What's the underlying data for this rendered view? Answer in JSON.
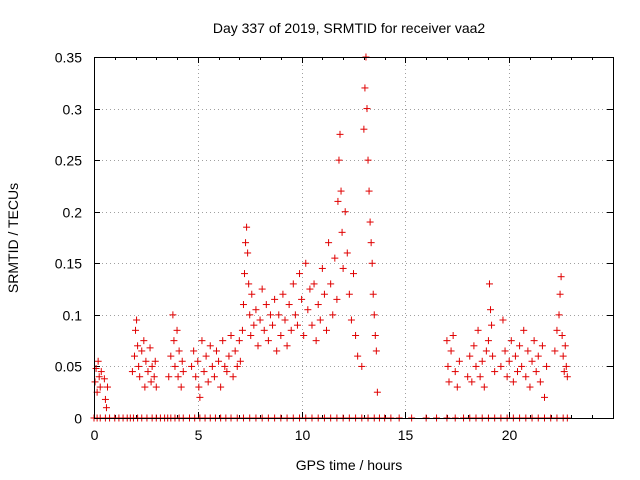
{
  "chart_data": {
    "type": "scatter",
    "title": "Day 337 of 2019, SRMTID for receiver vaa2",
    "xlabel": "GPS time / hours",
    "ylabel": "SRMTID / TECUs",
    "xlim": [
      0,
      25
    ],
    "ylim": [
      0,
      0.35
    ],
    "xticks": [
      0,
      5,
      10,
      15,
      20
    ],
    "xtick_labels": [
      "0",
      "5",
      "10",
      "15",
      "20"
    ],
    "yticks": [
      0,
      0.05,
      0.1,
      0.15,
      0.2,
      0.25,
      0.3,
      0.35
    ],
    "ytick_labels": [
      "0",
      "0.05",
      "0.1",
      "0.15",
      "0.2",
      "0.25",
      "0.3",
      "0.35"
    ],
    "grid": true,
    "marker": "+",
    "color": "#e00000",
    "series": [
      {
        "name": "SRMTID",
        "points": [
          [
            0.05,
            0.035
          ],
          [
            0.1,
            0.048
          ],
          [
            0.15,
            0.025
          ],
          [
            0.2,
            0.055
          ],
          [
            0.25,
            0.04
          ],
          [
            0.3,
            0.03
          ],
          [
            0.35,
            0.045
          ],
          [
            0.5,
            0.038
          ],
          [
            0.55,
            0.018
          ],
          [
            0.6,
            0.01
          ],
          [
            0.65,
            0.03
          ],
          [
            1.85,
            0.045
          ],
          [
            1.95,
            0.06
          ],
          [
            2.0,
            0.085
          ],
          [
            2.05,
            0.095
          ],
          [
            2.1,
            0.07
          ],
          [
            2.15,
            0.05
          ],
          [
            2.2,
            0.04
          ],
          [
            2.3,
            0.065
          ],
          [
            2.4,
            0.075
          ],
          [
            2.45,
            0.03
          ],
          [
            2.5,
            0.055
          ],
          [
            2.6,
            0.045
          ],
          [
            2.7,
            0.068
          ],
          [
            2.75,
            0.035
          ],
          [
            2.8,
            0.05
          ],
          [
            2.9,
            0.04
          ],
          [
            2.95,
            0.055
          ],
          [
            3.0,
            0.03
          ],
          [
            3.6,
            0.04
          ],
          [
            3.7,
            0.06
          ],
          [
            3.8,
            0.1
          ],
          [
            3.85,
            0.075
          ],
          [
            3.9,
            0.05
          ],
          [
            4.0,
            0.085
          ],
          [
            4.05,
            0.04
          ],
          [
            4.1,
            0.065
          ],
          [
            4.2,
            0.03
          ],
          [
            4.25,
            0.055
          ],
          [
            4.3,
            0.045
          ],
          [
            4.7,
            0.05
          ],
          [
            4.8,
            0.065
          ],
          [
            4.9,
            0.04
          ],
          [
            5.0,
            0.055
          ],
          [
            5.05,
            0.03
          ],
          [
            5.1,
            0.02
          ],
          [
            5.2,
            0.075
          ],
          [
            5.3,
            0.045
          ],
          [
            5.4,
            0.06
          ],
          [
            5.5,
            0.035
          ],
          [
            5.6,
            0.07
          ],
          [
            5.7,
            0.05
          ],
          [
            5.8,
            0.04
          ],
          [
            5.9,
            0.065
          ],
          [
            6.0,
            0.055
          ],
          [
            6.1,
            0.03
          ],
          [
            6.2,
            0.075
          ],
          [
            6.3,
            0.05
          ],
          [
            6.4,
            0.045
          ],
          [
            6.5,
            0.06
          ],
          [
            6.6,
            0.08
          ],
          [
            6.7,
            0.04
          ],
          [
            6.8,
            0.065
          ],
          [
            6.9,
            0.05
          ],
          [
            7.0,
            0.075
          ],
          [
            7.05,
            0.055
          ],
          [
            7.15,
            0.085
          ],
          [
            7.2,
            0.11
          ],
          [
            7.25,
            0.14
          ],
          [
            7.3,
            0.17
          ],
          [
            7.35,
            0.185
          ],
          [
            7.4,
            0.16
          ],
          [
            7.45,
            0.13
          ],
          [
            7.5,
            0.1
          ],
          [
            7.55,
            0.08
          ],
          [
            7.6,
            0.12
          ],
          [
            7.7,
            0.09
          ],
          [
            7.8,
            0.105
          ],
          [
            7.9,
            0.07
          ],
          [
            8.0,
            0.095
          ],
          [
            8.1,
            0.125
          ],
          [
            8.2,
            0.085
          ],
          [
            8.3,
            0.11
          ],
          [
            8.4,
            0.075
          ],
          [
            8.5,
            0.1
          ],
          [
            8.6,
            0.09
          ],
          [
            8.7,
            0.115
          ],
          [
            8.8,
            0.065
          ],
          [
            8.9,
            0.1
          ],
          [
            9.0,
            0.08
          ],
          [
            9.1,
            0.12
          ],
          [
            9.2,
            0.095
          ],
          [
            9.3,
            0.07
          ],
          [
            9.4,
            0.11
          ],
          [
            9.5,
            0.085
          ],
          [
            9.6,
            0.13
          ],
          [
            9.7,
            0.1
          ],
          [
            9.8,
            0.09
          ],
          [
            9.9,
            0.14
          ],
          [
            10.0,
            0.115
          ],
          [
            10.1,
            0.08
          ],
          [
            10.2,
            0.15
          ],
          [
            10.3,
            0.105
          ],
          [
            10.4,
            0.125
          ],
          [
            10.5,
            0.09
          ],
          [
            10.6,
            0.13
          ],
          [
            10.7,
            0.075
          ],
          [
            10.8,
            0.11
          ],
          [
            10.9,
            0.095
          ],
          [
            11.0,
            0.145
          ],
          [
            11.1,
            0.12
          ],
          [
            11.2,
            0.085
          ],
          [
            11.3,
            0.17
          ],
          [
            11.4,
            0.13
          ],
          [
            11.5,
            0.1
          ],
          [
            11.6,
            0.155
          ],
          [
            11.7,
            0.115
          ],
          [
            11.75,
            0.21
          ],
          [
            11.8,
            0.25
          ],
          [
            11.85,
            0.275
          ],
          [
            11.9,
            0.22
          ],
          [
            11.95,
            0.18
          ],
          [
            12.0,
            0.145
          ],
          [
            12.1,
            0.2
          ],
          [
            12.2,
            0.16
          ],
          [
            12.3,
            0.12
          ],
          [
            12.4,
            0.095
          ],
          [
            12.5,
            0.14
          ],
          [
            12.6,
            0.08
          ],
          [
            12.7,
            0.06
          ],
          [
            12.9,
            0.05
          ],
          [
            13.0,
            0.28
          ],
          [
            13.05,
            0.32
          ],
          [
            13.1,
            0.35
          ],
          [
            13.15,
            0.3
          ],
          [
            13.2,
            0.25
          ],
          [
            13.25,
            0.22
          ],
          [
            13.3,
            0.19
          ],
          [
            13.35,
            0.17
          ],
          [
            13.4,
            0.15
          ],
          [
            13.45,
            0.12
          ],
          [
            13.5,
            0.1
          ],
          [
            13.55,
            0.08
          ],
          [
            13.6,
            0.065
          ],
          [
            13.65,
            0.025
          ],
          [
            17.0,
            0.075
          ],
          [
            17.05,
            0.05
          ],
          [
            17.1,
            0.035
          ],
          [
            17.2,
            0.065
          ],
          [
            17.3,
            0.08
          ],
          [
            17.4,
            0.045
          ],
          [
            17.5,
            0.03
          ],
          [
            17.6,
            0.055
          ],
          [
            18.0,
            0.04
          ],
          [
            18.1,
            0.06
          ],
          [
            18.2,
            0.035
          ],
          [
            18.3,
            0.07
          ],
          [
            18.4,
            0.05
          ],
          [
            18.5,
            0.085
          ],
          [
            18.6,
            0.04
          ],
          [
            18.7,
            0.055
          ],
          [
            18.8,
            0.03
          ],
          [
            18.9,
            0.065
          ],
          [
            19.0,
            0.075
          ],
          [
            19.05,
            0.13
          ],
          [
            19.1,
            0.105
          ],
          [
            19.15,
            0.09
          ],
          [
            19.2,
            0.06
          ],
          [
            19.3,
            0.045
          ],
          [
            19.6,
            0.05
          ],
          [
            19.7,
            0.095
          ],
          [
            19.8,
            0.065
          ],
          [
            19.9,
            0.04
          ],
          [
            20.0,
            0.055
          ],
          [
            20.1,
            0.075
          ],
          [
            20.2,
            0.035
          ],
          [
            20.3,
            0.06
          ],
          [
            20.4,
            0.045
          ],
          [
            20.5,
            0.07
          ],
          [
            20.6,
            0.05
          ],
          [
            20.7,
            0.085
          ],
          [
            20.8,
            0.04
          ],
          [
            20.9,
            0.065
          ],
          [
            21.0,
            0.03
          ],
          [
            21.1,
            0.055
          ],
          [
            21.2,
            0.075
          ],
          [
            21.3,
            0.045
          ],
          [
            21.4,
            0.06
          ],
          [
            21.5,
            0.035
          ],
          [
            21.6,
            0.07
          ],
          [
            21.7,
            0.02
          ],
          [
            21.8,
            0.05
          ],
          [
            22.2,
            0.065
          ],
          [
            22.3,
            0.085
          ],
          [
            22.4,
            0.1
          ],
          [
            22.45,
            0.12
          ],
          [
            22.5,
            0.137
          ],
          [
            22.55,
            0.08
          ],
          [
            22.6,
            0.06
          ],
          [
            22.65,
            0.045
          ],
          [
            22.7,
            0.07
          ],
          [
            22.75,
            0.05
          ],
          [
            22.8,
            0.04
          ]
        ]
      }
    ],
    "zero_markers_x": [
      0.0,
      0.15,
      0.3,
      0.55,
      0.75,
      1.0,
      1.2,
      1.4,
      1.6,
      1.75,
      1.9,
      2.1,
      2.3,
      2.55,
      2.8,
      3.0,
      3.2,
      3.4,
      3.55,
      3.7,
      3.9,
      4.1,
      4.3,
      4.6,
      4.85,
      5.1,
      5.35,
      5.6,
      5.85,
      6.1,
      6.35,
      6.6,
      6.9,
      7.2,
      7.5,
      7.8,
      8.1,
      8.4,
      8.7,
      9.0,
      9.3,
      9.6,
      9.9,
      10.2,
      10.5,
      10.8,
      11.1,
      11.4,
      11.7,
      12.0,
      12.3,
      12.6,
      12.9,
      13.2,
      13.5,
      13.75,
      14.0,
      14.3,
      14.7,
      15.3,
      16.0,
      16.5,
      17.0,
      17.4,
      17.8,
      18.1,
      18.4,
      18.7,
      19.0,
      19.3,
      19.6,
      19.9,
      20.2,
      20.5,
      20.8,
      21.1,
      21.4,
      21.7,
      22.0,
      22.3,
      22.6,
      22.8
    ]
  }
}
